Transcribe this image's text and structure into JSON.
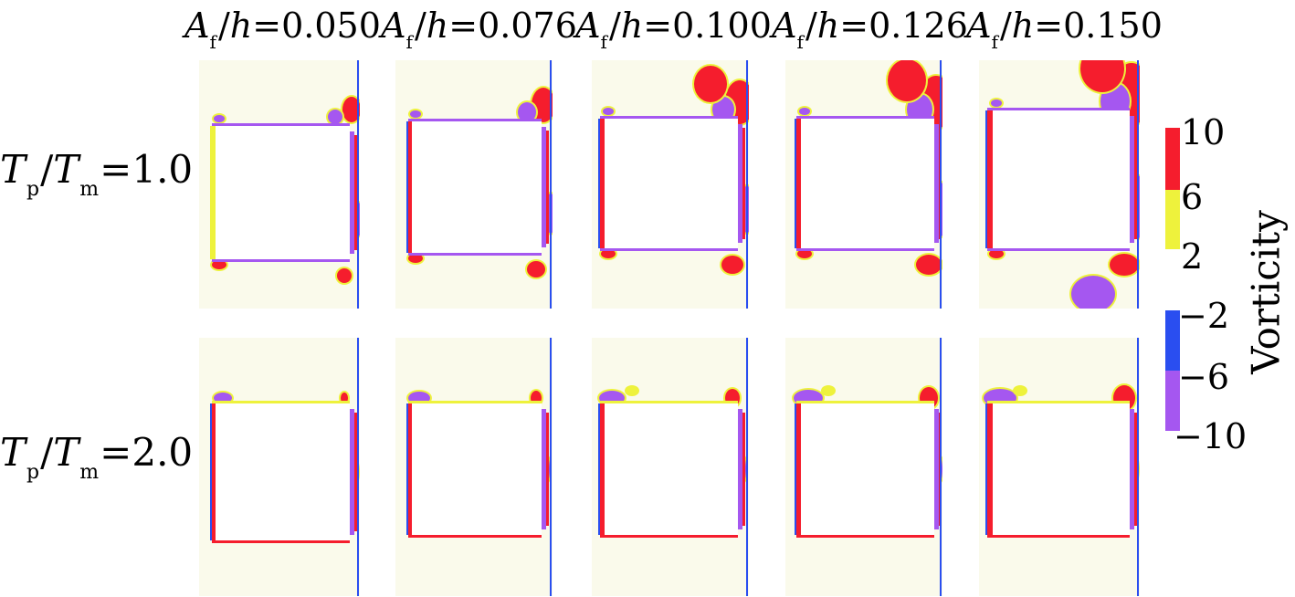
{
  "columns": [
    {
      "ratio": "0.050"
    },
    {
      "ratio": "0.076"
    },
    {
      "ratio": "0.100"
    },
    {
      "ratio": "0.126"
    },
    {
      "ratio": "0.150"
    }
  ],
  "column_label": {
    "var": "A",
    "sub": "f",
    "slash": "/",
    "den": "h",
    "eq": "="
  },
  "rows": [
    {
      "value": "1.0"
    },
    {
      "value": "2.0"
    }
  ],
  "row_label": {
    "num": "T",
    "num_sub": "p",
    "slash": "/",
    "den": "T",
    "den_sub": "m",
    "eq": "="
  },
  "colorbar": {
    "title": "Vorticity",
    "ticks": [
      "10",
      "6",
      "2",
      "−2",
      "−6",
      "−10"
    ],
    "colors": {
      "strong_positive": "#f51d2d",
      "weak_positive": "#eef23c",
      "weak_negative": "#2a4ef0",
      "strong_negative": "#a557f0",
      "background": "#fafaeb"
    }
  }
}
